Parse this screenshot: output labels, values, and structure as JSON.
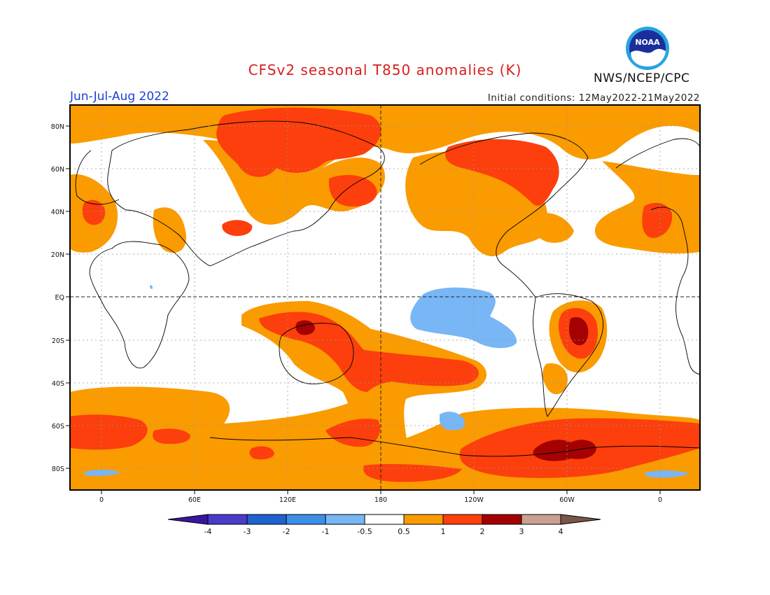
{
  "title": "CFSv2 seasonal T850 anomalies (K)",
  "season": "Jun-Jul-Aug 2022",
  "initial_conditions": "Initial conditions: 12May2022-21May2022",
  "agency": "NWS/NCEP/CPC",
  "logo_text": "NOAA",
  "map": {
    "lat_labels": [
      "80N",
      "60N",
      "40N",
      "20N",
      "EQ",
      "20S",
      "40S",
      "60S",
      "80S"
    ],
    "lon_labels": [
      "0",
      "60E",
      "120E",
      "180",
      "120W",
      "60W",
      "0"
    ],
    "colors": {
      "lt_n4": "#3a16a0",
      "n4_n3": "#4a3cc8",
      "n3_n2": "#1e62d0",
      "n2_n1": "#3c8fe8",
      "n1_n05": "#78b6f5",
      "neutral": "#ffffff",
      "p05_1": "#fa9b00",
      "p1_2": "#fc3f0c",
      "p2_3": "#a40202",
      "p3_4": "#c9a092",
      "gt_4": "#7a5646"
    }
  },
  "colorbar": {
    "labels": [
      "-4",
      "-3",
      "-2",
      "-1",
      "-0.5",
      "0.5",
      "1",
      "2",
      "3",
      "4"
    ]
  }
}
